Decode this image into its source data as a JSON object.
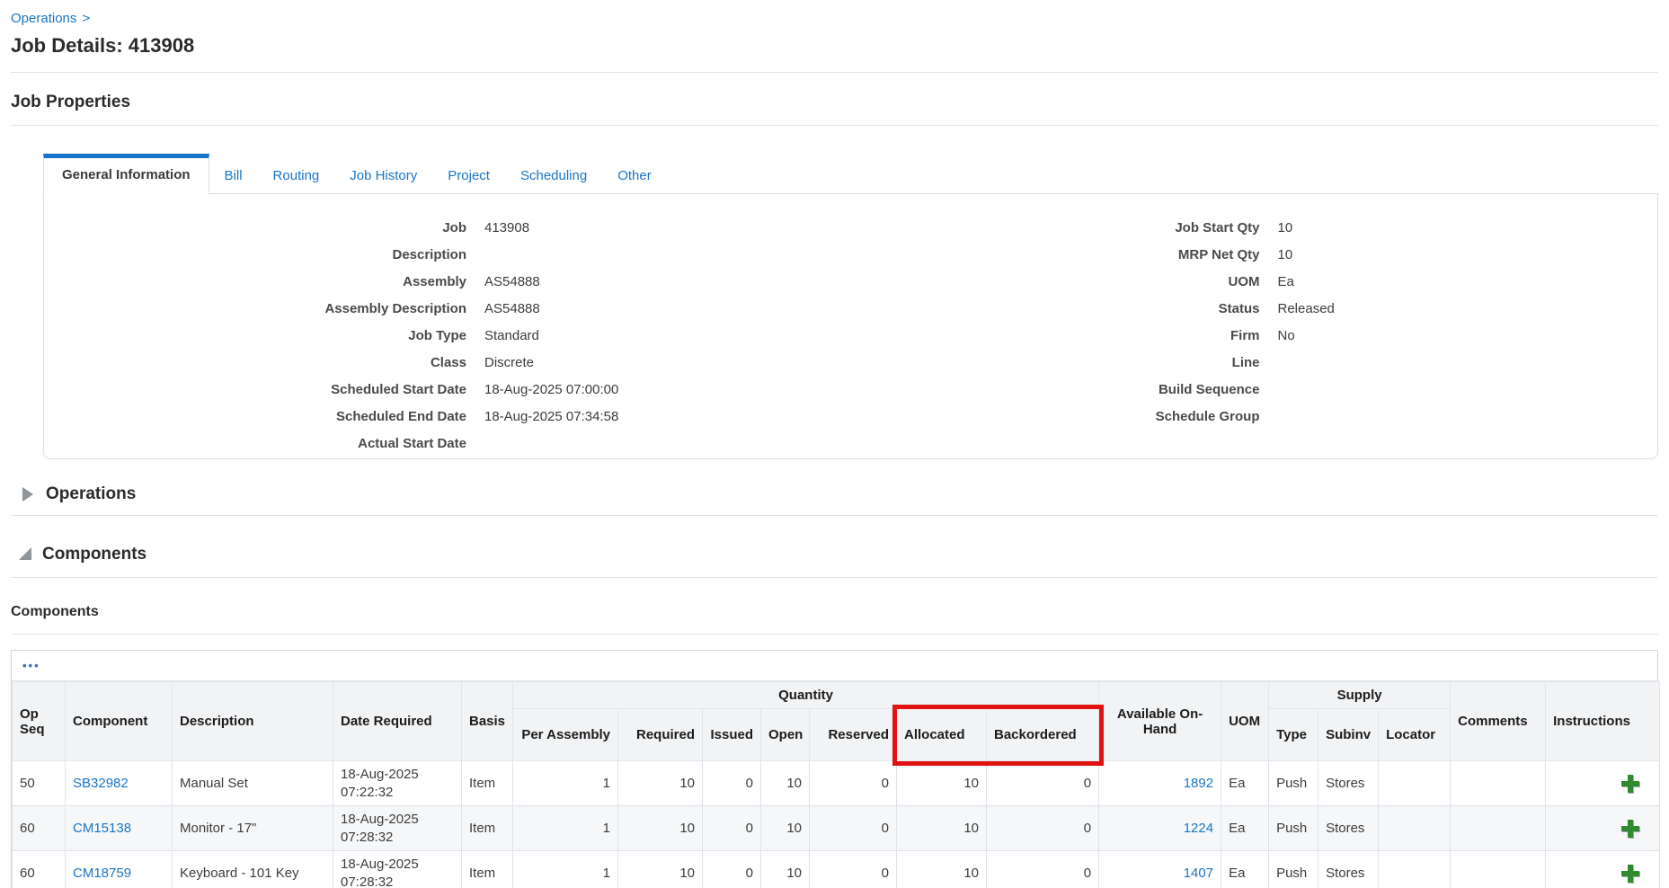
{
  "breadcrumb": {
    "label": "Operations",
    "separator": ">"
  },
  "page_title": "Job Details: 413908",
  "job_properties": {
    "heading": "Job Properties",
    "tabs": [
      {
        "label": "General Information",
        "active": true
      },
      {
        "label": "Bill",
        "active": false
      },
      {
        "label": "Routing",
        "active": false
      },
      {
        "label": "Job History",
        "active": false
      },
      {
        "label": "Project",
        "active": false
      },
      {
        "label": "Scheduling",
        "active": false
      },
      {
        "label": "Other",
        "active": false
      }
    ],
    "fields_left": [
      {
        "label": "Job",
        "value": "413908"
      },
      {
        "label": "Description",
        "value": ""
      },
      {
        "label": "Assembly",
        "value": "AS54888"
      },
      {
        "label": "Assembly Description",
        "value": "AS54888"
      },
      {
        "label": "Job Type",
        "value": "Standard"
      },
      {
        "label": "Class",
        "value": "Discrete"
      },
      {
        "label": "Scheduled Start Date",
        "value": "18-Aug-2025 07:00:00"
      },
      {
        "label": "Scheduled End Date",
        "value": "18-Aug-2025 07:34:58"
      },
      {
        "label": "Actual Start Date",
        "value": ""
      }
    ],
    "fields_right": [
      {
        "label": "Job Start Qty",
        "value": "10"
      },
      {
        "label": "MRP Net Qty",
        "value": "10"
      },
      {
        "label": "UOM",
        "value": "Ea"
      },
      {
        "label": "Status",
        "value": "Released"
      },
      {
        "label": "Firm",
        "value": "No"
      },
      {
        "label": "Line",
        "value": ""
      },
      {
        "label": "Build Sequence",
        "value": ""
      },
      {
        "label": "Schedule Group",
        "value": ""
      }
    ]
  },
  "operations_section": {
    "title": "Operations",
    "state": "collapsed"
  },
  "components_section": {
    "title": "Components",
    "state": "expanded",
    "subheading": "Components"
  },
  "components_table": {
    "toolbar_ellipsis": "•••",
    "group_headers": {
      "quantity": "Quantity",
      "supply": "Supply"
    },
    "headers": {
      "op_seq": "Op Seq",
      "component": "Component",
      "description": "Description",
      "date_required": "Date Required",
      "basis": "Basis",
      "per_assembly": "Per Assembly",
      "required": "Required",
      "issued": "Issued",
      "open": "Open",
      "reserved": "Reserved",
      "allocated": "Allocated",
      "backordered": "Backordered",
      "available_on_hand": "Available On-Hand",
      "uom": "UOM",
      "type": "Type",
      "subinv": "Subinv",
      "locator": "Locator",
      "comments": "Comments",
      "instructions": "Instructions"
    },
    "rows": [
      {
        "op_seq": "50",
        "component": "SB32982",
        "description": "Manual Set",
        "date_line1": "18-Aug-2025",
        "date_line2": "07:22:32",
        "basis": "Item",
        "per_assembly": "1",
        "required": "10",
        "issued": "0",
        "open": "10",
        "reserved": "0",
        "allocated": "10",
        "backordered": "0",
        "available_on_hand": "1892",
        "uom": "Ea",
        "type": "Push",
        "subinv": "Stores",
        "locator": "",
        "comments": ""
      },
      {
        "op_seq": "60",
        "component": "CM15138",
        "description": "Monitor - 17\"",
        "date_line1": "18-Aug-2025",
        "date_line2": "07:28:32",
        "basis": "Item",
        "per_assembly": "1",
        "required": "10",
        "issued": "0",
        "open": "10",
        "reserved": "0",
        "allocated": "10",
        "backordered": "0",
        "available_on_hand": "1224",
        "uom": "Ea",
        "type": "Push",
        "subinv": "Stores",
        "locator": "",
        "comments": ""
      },
      {
        "op_seq": "60",
        "component": "CM18759",
        "description": "Keyboard - 101 Key",
        "date_line1": "18-Aug-2025",
        "date_line2": "07:28:32",
        "basis": "Item",
        "per_assembly": "1",
        "required": "10",
        "issued": "0",
        "open": "10",
        "reserved": "0",
        "allocated": "10",
        "backordered": "0",
        "available_on_hand": "1407",
        "uom": "Ea",
        "type": "Push",
        "subinv": "Stores",
        "locator": "",
        "comments": ""
      }
    ]
  },
  "highlight_box": {
    "around": [
      "Allocated",
      "Backordered"
    ],
    "color": "#e01212"
  },
  "colors": {
    "link_blue": "#1a75c6",
    "tab_active_bar": "#1470c8",
    "header_bg": "#f2f3f5",
    "highlight_red": "#e01212",
    "plus_green": "#2e8b30"
  }
}
